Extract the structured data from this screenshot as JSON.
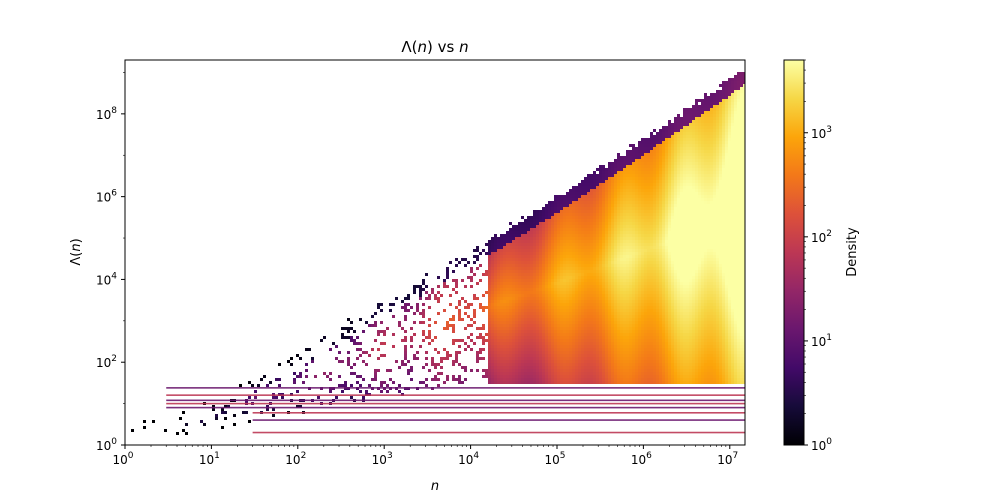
{
  "chart_data": {
    "type": "heatmap",
    "title": "Λ(n) vs n",
    "title_parts": {
      "func": "Λ",
      "arg": "n",
      "vs": " vs ",
      "var": "n"
    },
    "xlabel": "n",
    "ylabel_parts": {
      "func": "Λ",
      "arg": "n"
    },
    "x_scale": "log",
    "y_scale": "log",
    "xlim": [
      1,
      15000000
    ],
    "ylim": [
      1,
      2000000000
    ],
    "x_ticks": [
      {
        "value": 1,
        "base": "10",
        "exp": "0"
      },
      {
        "value": 10,
        "base": "10",
        "exp": "1"
      },
      {
        "value": 100,
        "base": "10",
        "exp": "2"
      },
      {
        "value": 1000,
        "base": "10",
        "exp": "3"
      },
      {
        "value": 10000,
        "base": "10",
        "exp": "4"
      },
      {
        "value": 100000,
        "base": "10",
        "exp": "5"
      },
      {
        "value": 1000000,
        "base": "10",
        "exp": "6"
      },
      {
        "value": 10000000,
        "base": "10",
        "exp": "7"
      }
    ],
    "y_ticks": [
      {
        "value": 1,
        "base": "10",
        "exp": "0"
      },
      {
        "value": 100,
        "base": "10",
        "exp": "2"
      },
      {
        "value": 10000,
        "base": "10",
        "exp": "4"
      },
      {
        "value": 1000000,
        "base": "10",
        "exp": "6"
      },
      {
        "value": 100000000,
        "base": "10",
        "exp": "8"
      }
    ],
    "colorbar": {
      "label": "Density",
      "scale": "log",
      "range": [
        1,
        5000
      ],
      "colormap": "inferno",
      "ticks": [
        {
          "value": 1,
          "base": "10",
          "exp": "0"
        },
        {
          "value": 10,
          "base": "10",
          "exp": "1"
        },
        {
          "value": 100,
          "base": "10",
          "exp": "2"
        },
        {
          "value": 1000,
          "base": "10",
          "exp": "3"
        }
      ]
    },
    "upper_envelope": [
      [
        1,
        2
      ],
      [
        10,
        10
      ],
      [
        100,
        150
      ],
      [
        1000,
        2500
      ],
      [
        10000,
        40000
      ],
      [
        100000,
        800000
      ],
      [
        1000000,
        20000000
      ],
      [
        15000000,
        1000000000
      ]
    ],
    "lower_envelope": [
      [
        1,
        1
      ],
      [
        10000,
        30
      ],
      [
        15000000,
        30
      ]
    ],
    "horizontal_bands": [
      2,
      4,
      6,
      8,
      10,
      12,
      16,
      24
    ],
    "grid": false
  }
}
